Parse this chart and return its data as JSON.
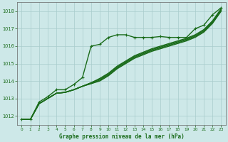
{
  "title": "Graphe pression niveau de la mer (hPa)",
  "bg_color": "#cde8e8",
  "grid_color": "#a8cccc",
  "line_color": "#1a6b1a",
  "marker_color": "#1a6b1a",
  "axis_color": "#666666",
  "text_color": "#1a6b1a",
  "xlim": [
    -0.5,
    23.5
  ],
  "ylim": [
    1011.5,
    1018.5
  ],
  "xticks": [
    0,
    1,
    2,
    3,
    4,
    5,
    6,
    7,
    8,
    9,
    10,
    11,
    12,
    13,
    14,
    15,
    16,
    17,
    18,
    19,
    20,
    21,
    22,
    23
  ],
  "yticks": [
    1012,
    1013,
    1014,
    1015,
    1016,
    1017,
    1018
  ],
  "series": [
    {
      "y": [
        1011.8,
        1011.8,
        1012.8,
        1013.1,
        1013.5,
        1013.5,
        1013.8,
        1014.2,
        1016.0,
        1016.1,
        1016.5,
        1016.65,
        1016.65,
        1016.5,
        1016.5,
        1016.5,
        1016.55,
        1016.5,
        1016.5,
        1016.5,
        1017.0,
        1017.2,
        1017.8,
        1018.2
      ],
      "marker": true,
      "lw": 1.0
    },
    {
      "y": [
        1011.8,
        1011.8,
        1012.7,
        1013.0,
        1013.3,
        1013.35,
        1013.5,
        1013.7,
        1013.85,
        1014.0,
        1014.3,
        1014.7,
        1015.0,
        1015.3,
        1015.5,
        1015.7,
        1015.85,
        1016.0,
        1016.15,
        1016.3,
        1016.5,
        1016.8,
        1017.3,
        1018.0
      ],
      "marker": false,
      "lw": 1.0
    },
    {
      "y": [
        1011.8,
        1011.8,
        1012.7,
        1013.0,
        1013.3,
        1013.35,
        1013.5,
        1013.7,
        1013.85,
        1014.05,
        1014.35,
        1014.75,
        1015.05,
        1015.35,
        1015.55,
        1015.75,
        1015.9,
        1016.05,
        1016.2,
        1016.35,
        1016.55,
        1016.85,
        1017.35,
        1018.05
      ],
      "marker": false,
      "lw": 1.0
    },
    {
      "y": [
        1011.8,
        1011.8,
        1012.7,
        1013.0,
        1013.3,
        1013.35,
        1013.5,
        1013.7,
        1013.9,
        1014.1,
        1014.4,
        1014.8,
        1015.1,
        1015.4,
        1015.6,
        1015.8,
        1015.95,
        1016.1,
        1016.25,
        1016.4,
        1016.6,
        1016.9,
        1017.4,
        1018.1
      ],
      "marker": false,
      "lw": 1.0
    },
    {
      "y": [
        1011.8,
        1011.8,
        1012.7,
        1013.0,
        1013.3,
        1013.35,
        1013.5,
        1013.7,
        1013.9,
        1014.15,
        1014.45,
        1014.85,
        1015.15,
        1015.45,
        1015.65,
        1015.85,
        1016.0,
        1016.15,
        1016.3,
        1016.45,
        1016.65,
        1016.95,
        1017.45,
        1018.15
      ],
      "marker": false,
      "lw": 1.0
    }
  ]
}
